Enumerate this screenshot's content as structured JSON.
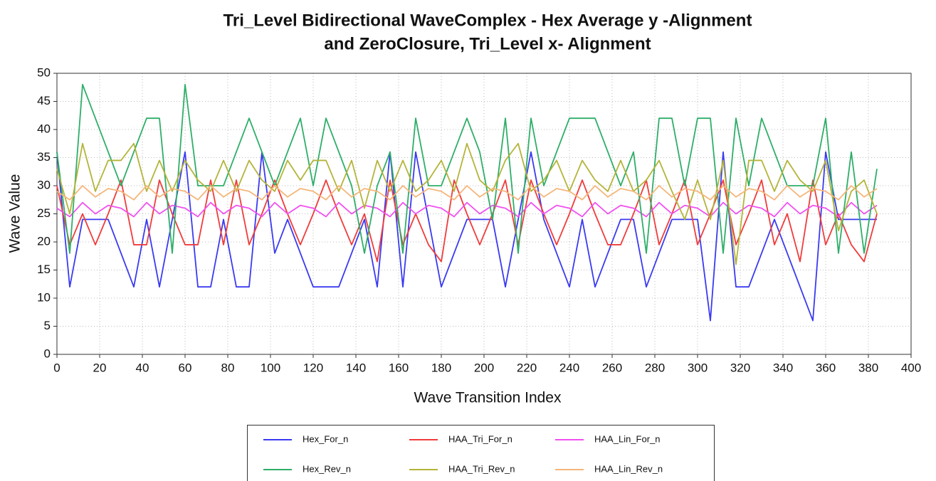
{
  "chart_data": {
    "type": "line",
    "title": [
      "Tri_Level Bidirectional WaveComplex - Hex Average y -Alignment",
      "and ZeroClosure, Tri_Level x- Alignment"
    ],
    "xlabel": "Wave Transition Index",
    "ylabel": "Wave Value",
    "x": [
      0,
      6,
      12,
      18,
      24,
      30,
      36,
      42,
      48,
      54,
      60,
      66,
      72,
      78,
      84,
      90,
      96,
      102,
      108,
      114,
      120,
      126,
      132,
      138,
      144,
      150,
      156,
      162,
      168,
      174,
      180,
      186,
      192,
      198,
      204,
      210,
      216,
      222,
      228,
      234,
      240,
      246,
      252,
      258,
      264,
      270,
      276,
      282,
      288,
      294,
      300,
      306,
      312,
      318,
      324,
      330,
      336,
      342,
      348,
      354,
      360,
      366,
      372,
      378,
      384
    ],
    "series": [
      {
        "name": "Hex_For_n",
        "color": "#3a3af2",
        "values": [
          36,
          12,
          24,
          24,
          24,
          18,
          12,
          24,
          12,
          24,
          36,
          12,
          12,
          24,
          12,
          12,
          36,
          18,
          24,
          18,
          12,
          12,
          12,
          18,
          24,
          12,
          36,
          12,
          36,
          24,
          12,
          18,
          24,
          24,
          24,
          12,
          24,
          36,
          24,
          18,
          12,
          24,
          12,
          18,
          24,
          24,
          12,
          18,
          24,
          24,
          24,
          6,
          36,
          12,
          12,
          18,
          24,
          18,
          12,
          6,
          36,
          24,
          24,
          24,
          24
        ]
      },
      {
        "name": "HAA_Tri_For_n",
        "color": "#f03c3c",
        "values": [
          30,
          19.5,
          25,
          19.5,
          25,
          31,
          19.5,
          19.5,
          31,
          25,
          19.5,
          19.5,
          31,
          19.5,
          31,
          19.5,
          25,
          31,
          25,
          19.5,
          25,
          31,
          25,
          19.5,
          25,
          16.5,
          31,
          19.5,
          25,
          19.5,
          16.5,
          31,
          25,
          19.5,
          25,
          31,
          19.5,
          31,
          25,
          19.5,
          25,
          31,
          25,
          19.5,
          19.5,
          25,
          31,
          19.5,
          25,
          31,
          19.5,
          25,
          31,
          19.5,
          25,
          31,
          19.5,
          25,
          16.5,
          31,
          19.5,
          25,
          19.5,
          16.5,
          25
        ]
      },
      {
        "name": "HAA_Lin_For_n",
        "color": "#f050f0",
        "values": [
          26,
          24.5,
          27,
          25,
          26.5,
          26,
          24.5,
          27,
          25,
          26.5,
          26,
          24.5,
          27,
          25,
          26.5,
          26,
          24.5,
          27,
          25,
          26.5,
          26,
          24.5,
          27,
          25,
          26.5,
          26,
          24.5,
          27,
          25,
          26.5,
          26,
          24.5,
          27,
          25,
          26.5,
          26,
          24.5,
          27,
          25,
          26.5,
          26,
          24.5,
          27,
          25,
          26.5,
          26,
          24.5,
          27,
          25,
          26.5,
          26,
          24.5,
          27,
          25,
          26.5,
          26,
          24.5,
          27,
          25,
          26.5,
          26,
          24.5,
          27,
          25,
          26.5
        ]
      },
      {
        "name": "Hex_Rev_n",
        "color": "#2eae68",
        "values": [
          36,
          18,
          48,
          42,
          36,
          30,
          36,
          42,
          42,
          18,
          48,
          30,
          30,
          30,
          36,
          42,
          36,
          30,
          36,
          42,
          30,
          42,
          36,
          30,
          18,
          30,
          36,
          18,
          42,
          30,
          30,
          36,
          42,
          36,
          24,
          42,
          18,
          42,
          30,
          36,
          42,
          42,
          42,
          36,
          30,
          36,
          18,
          42,
          42,
          30,
          42,
          42,
          18,
          42,
          30,
          42,
          36,
          30,
          30,
          30,
          42,
          18,
          36,
          18,
          33
        ]
      },
      {
        "name": "HAA_Tri_Rev_n",
        "color": "#b4b43a",
        "values": [
          33,
          25,
          37.5,
          29,
          34.5,
          34.5,
          37.5,
          29,
          34.5,
          29,
          34.5,
          31,
          29,
          34.5,
          29,
          34.5,
          31,
          29,
          34.5,
          31,
          34.5,
          34.5,
          29,
          34.5,
          26,
          34.5,
          29,
          34.5,
          29,
          31,
          34.5,
          29,
          37.5,
          31,
          29,
          34.5,
          37.5,
          29,
          31,
          34.5,
          29,
          34.5,
          31,
          29,
          34.5,
          29,
          31,
          34.5,
          29,
          24,
          31,
          24,
          34.5,
          16,
          34.5,
          34.5,
          29,
          34.5,
          31,
          29,
          34.5,
          22,
          29,
          31,
          25
        ]
      },
      {
        "name": "HAA_Lin_Rev_n",
        "color": "#f5b67a",
        "values": [
          29,
          27.5,
          30,
          28,
          29.5,
          29,
          27.5,
          30,
          28,
          29.5,
          29,
          27.5,
          30,
          28,
          29.5,
          29,
          27.5,
          30,
          28,
          29.5,
          29,
          27.5,
          30,
          28,
          29.5,
          29,
          27.5,
          30,
          28,
          29.5,
          29,
          27.5,
          30,
          28,
          29.5,
          29,
          27.5,
          30,
          28,
          29.5,
          29,
          27.5,
          30,
          28,
          29.5,
          29,
          27.5,
          30,
          28,
          29.5,
          29,
          27.5,
          30,
          28,
          29.5,
          29,
          27.5,
          30,
          28,
          29.5,
          29,
          27.5,
          30,
          28,
          29.5
        ]
      }
    ],
    "xlim": [
      0,
      400
    ],
    "xticks": [
      0,
      20,
      40,
      60,
      80,
      100,
      120,
      140,
      160,
      180,
      200,
      220,
      240,
      260,
      280,
      300,
      320,
      340,
      360,
      380,
      400
    ],
    "ylim": [
      0,
      50
    ],
    "yticks": [
      0,
      5,
      10,
      15,
      20,
      25,
      30,
      35,
      40,
      45,
      50
    ],
    "grid": true
  }
}
